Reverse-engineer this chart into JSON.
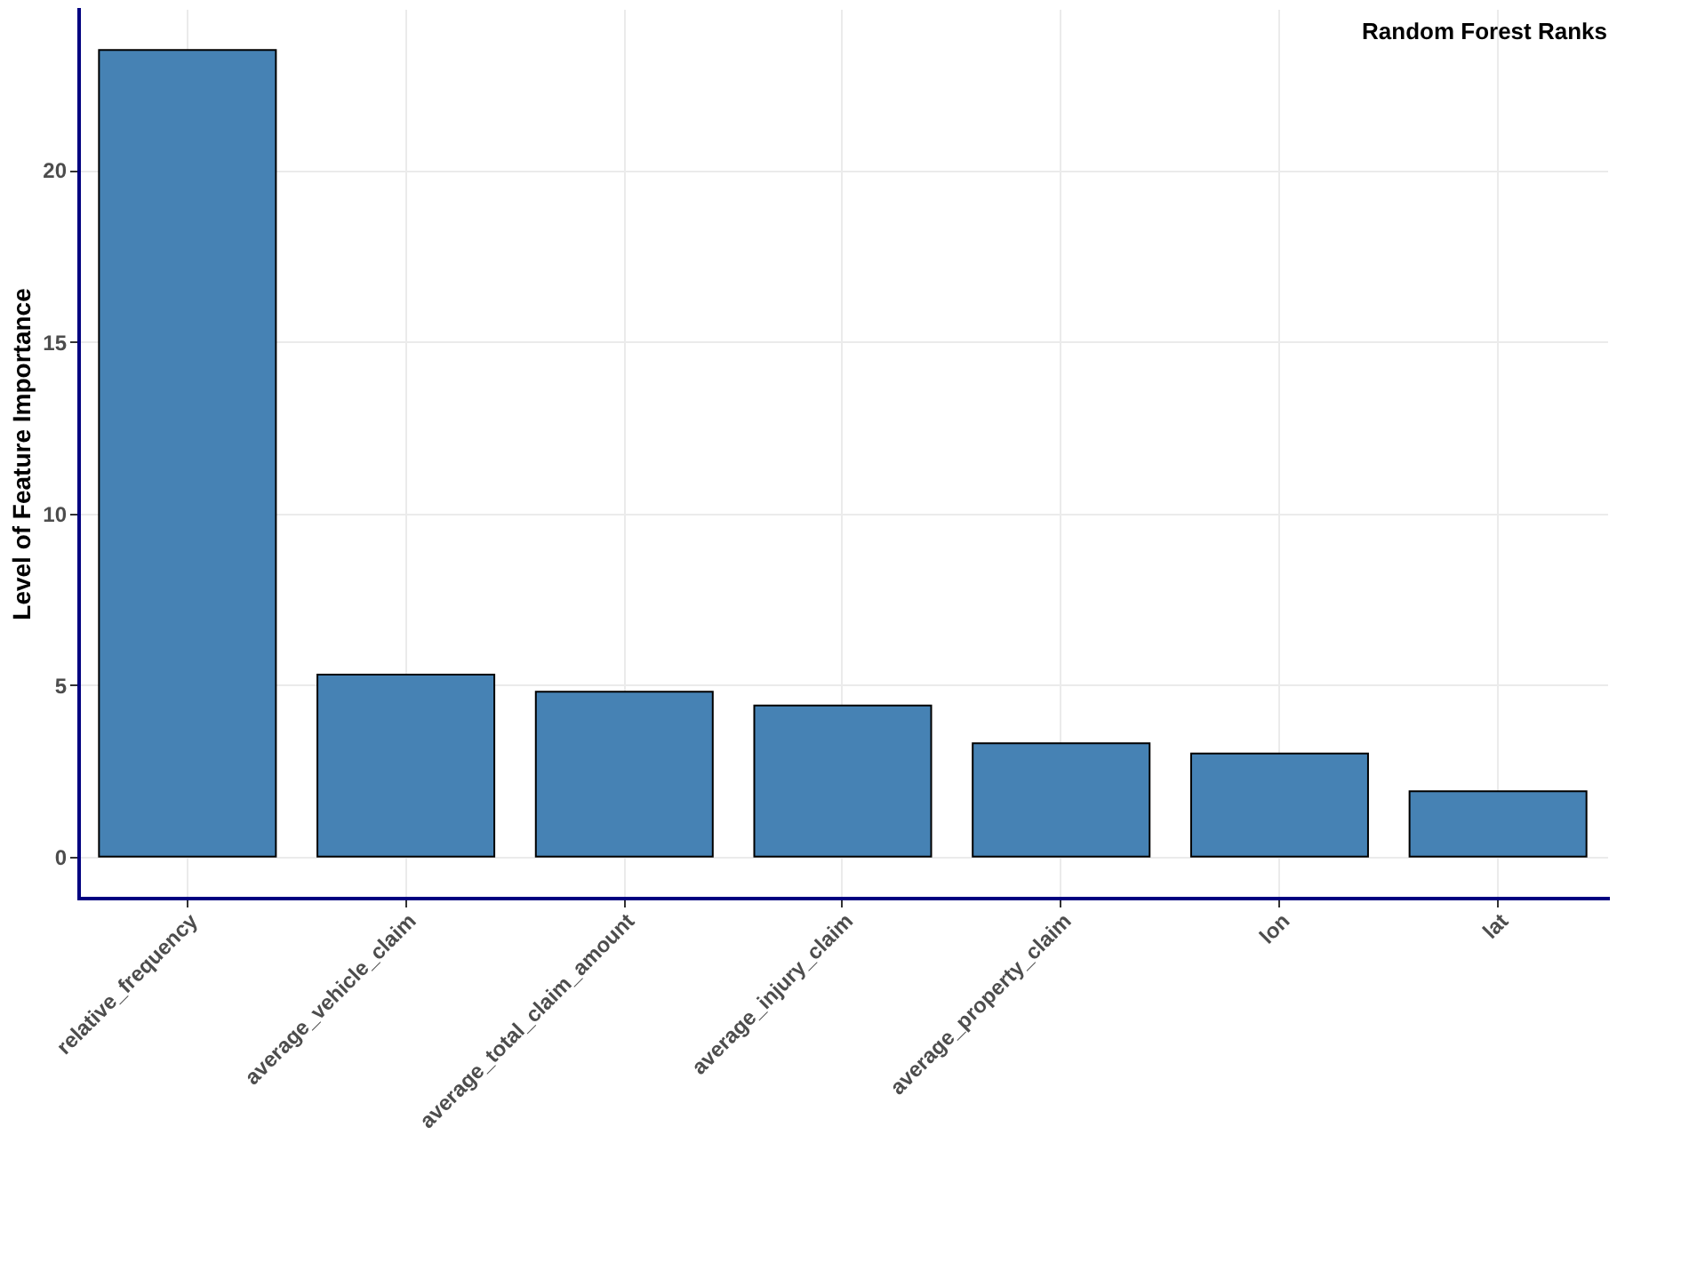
{
  "chart_data": {
    "type": "bar",
    "title": "Random Forest Ranks",
    "ylabel": "Level of Feature Importance",
    "categories": [
      "relative_frequency",
      "average_vehicle_claim",
      "average_total_claim_amount",
      "average_injury_claim",
      "average_property_claim",
      "lon",
      "lat"
    ],
    "values": [
      23.5,
      5.3,
      4.8,
      4.4,
      3.3,
      3.0,
      1.9
    ],
    "color": "#4682b4",
    "ylim": [
      -1.2,
      24.7
    ],
    "yticks": [
      0,
      5,
      10,
      15,
      20
    ],
    "grid": true
  }
}
